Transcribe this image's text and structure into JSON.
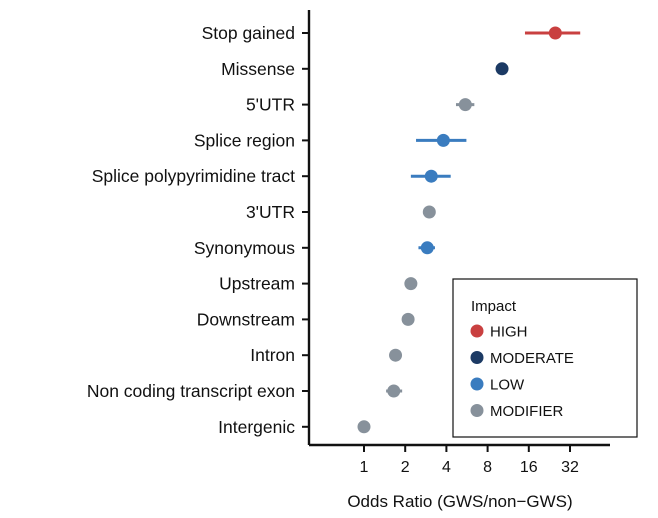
{
  "chart_data": {
    "type": "scatter",
    "orientation": "horizontal",
    "title": "",
    "xlabel": "Odds Ratio (GWS/non−GWS)",
    "ylabel": "",
    "x_scale": "log2",
    "xlim": [
      0.68,
      64
    ],
    "x_ticks": [
      1,
      2,
      4,
      8,
      16,
      32
    ],
    "x_tick_labels": [
      "1",
      "2",
      "4",
      "8",
      "16",
      "32"
    ],
    "grid": false,
    "legend": {
      "title": "Impact",
      "position": "bottom-right",
      "entries": [
        {
          "name": "HIGH",
          "color": "#c94040"
        },
        {
          "name": "MODERATE",
          "color": "#1c3a64"
        },
        {
          "name": "LOW",
          "color": "#3a7cbf"
        },
        {
          "name": "MODIFIER",
          "color": "#87919b"
        }
      ]
    },
    "categories": [
      "Stop gained",
      "Missense",
      "5'UTR",
      "Splice region",
      "Splice polypyrimidine tract",
      "3'UTR",
      "Synonymous",
      "Upstream",
      "Downstream",
      "Intron",
      "Non coding transcript exon",
      "Intergenic"
    ],
    "points": [
      {
        "category": "Stop gained",
        "or": 25.0,
        "lo": 15.0,
        "hi": 38.0,
        "impact": "HIGH"
      },
      {
        "category": "Missense",
        "or": 10.2,
        "lo": 9.9,
        "hi": 10.5,
        "impact": "MODERATE"
      },
      {
        "category": "5'UTR",
        "or": 5.5,
        "lo": 4.7,
        "hi": 6.4,
        "impact": "MODIFIER"
      },
      {
        "category": "Splice region",
        "or": 3.8,
        "lo": 2.4,
        "hi": 5.6,
        "impact": "LOW"
      },
      {
        "category": "Splice polypyrimidine tract",
        "or": 3.1,
        "lo": 2.2,
        "hi": 4.3,
        "impact": "LOW"
      },
      {
        "category": "3'UTR",
        "or": 3.0,
        "lo": 2.9,
        "hi": 3.1,
        "impact": "MODIFIER"
      },
      {
        "category": "Synonymous",
        "or": 2.9,
        "lo": 2.5,
        "hi": 3.3,
        "impact": "LOW"
      },
      {
        "category": "Upstream",
        "or": 2.2,
        "lo": 2.15,
        "hi": 2.25,
        "impact": "MODIFIER"
      },
      {
        "category": "Downstream",
        "or": 2.1,
        "lo": 2.05,
        "hi": 2.15,
        "impact": "MODIFIER"
      },
      {
        "category": "Intron",
        "or": 1.7,
        "lo": 1.68,
        "hi": 1.72,
        "impact": "MODIFIER"
      },
      {
        "category": "Non coding transcript exon",
        "or": 1.65,
        "lo": 1.45,
        "hi": 1.9,
        "impact": "MODIFIER"
      },
      {
        "category": "Intergenic",
        "or": 1.0,
        "lo": 0.98,
        "hi": 1.02,
        "impact": "MODIFIER"
      }
    ]
  }
}
